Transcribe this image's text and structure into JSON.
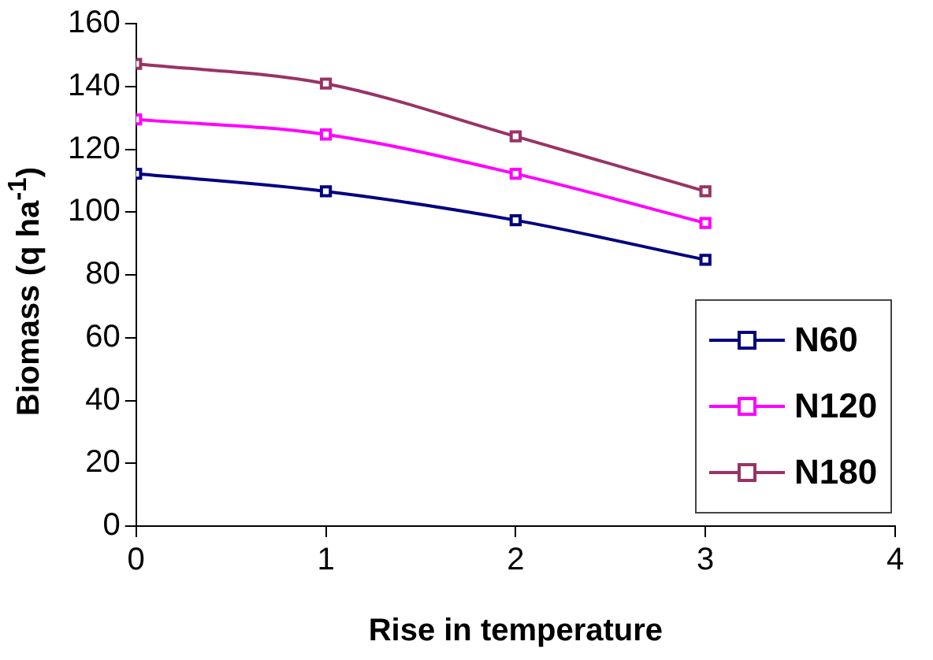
{
  "chart_data": {
    "type": "line",
    "xlabel": "Rise in temperature",
    "ylabel": "Biomass (q ha$^{-1}$)",
    "x": [
      0,
      1,
      2,
      3
    ],
    "xlim": [
      0,
      4
    ],
    "xticks": [
      0,
      1,
      2,
      3,
      4
    ],
    "ylim": [
      0,
      160
    ],
    "yticks": [
      0,
      20,
      40,
      60,
      80,
      100,
      120,
      140,
      160
    ],
    "grid": false,
    "legend": "bottom right",
    "marker": "square",
    "line_style": "solid",
    "series": [
      {
        "name": "N60",
        "color": "#000080",
        "values": [
          112.2,
          106.6,
          97.4,
          84.8
        ]
      },
      {
        "name": "N120",
        "color": "#ff00ff",
        "values": [
          129.5,
          124.7,
          112.2,
          96.5
        ]
      },
      {
        "name": "N180",
        "color": "#993366",
        "values": [
          147.2,
          140.9,
          124.1,
          106.6
        ]
      }
    ]
  }
}
